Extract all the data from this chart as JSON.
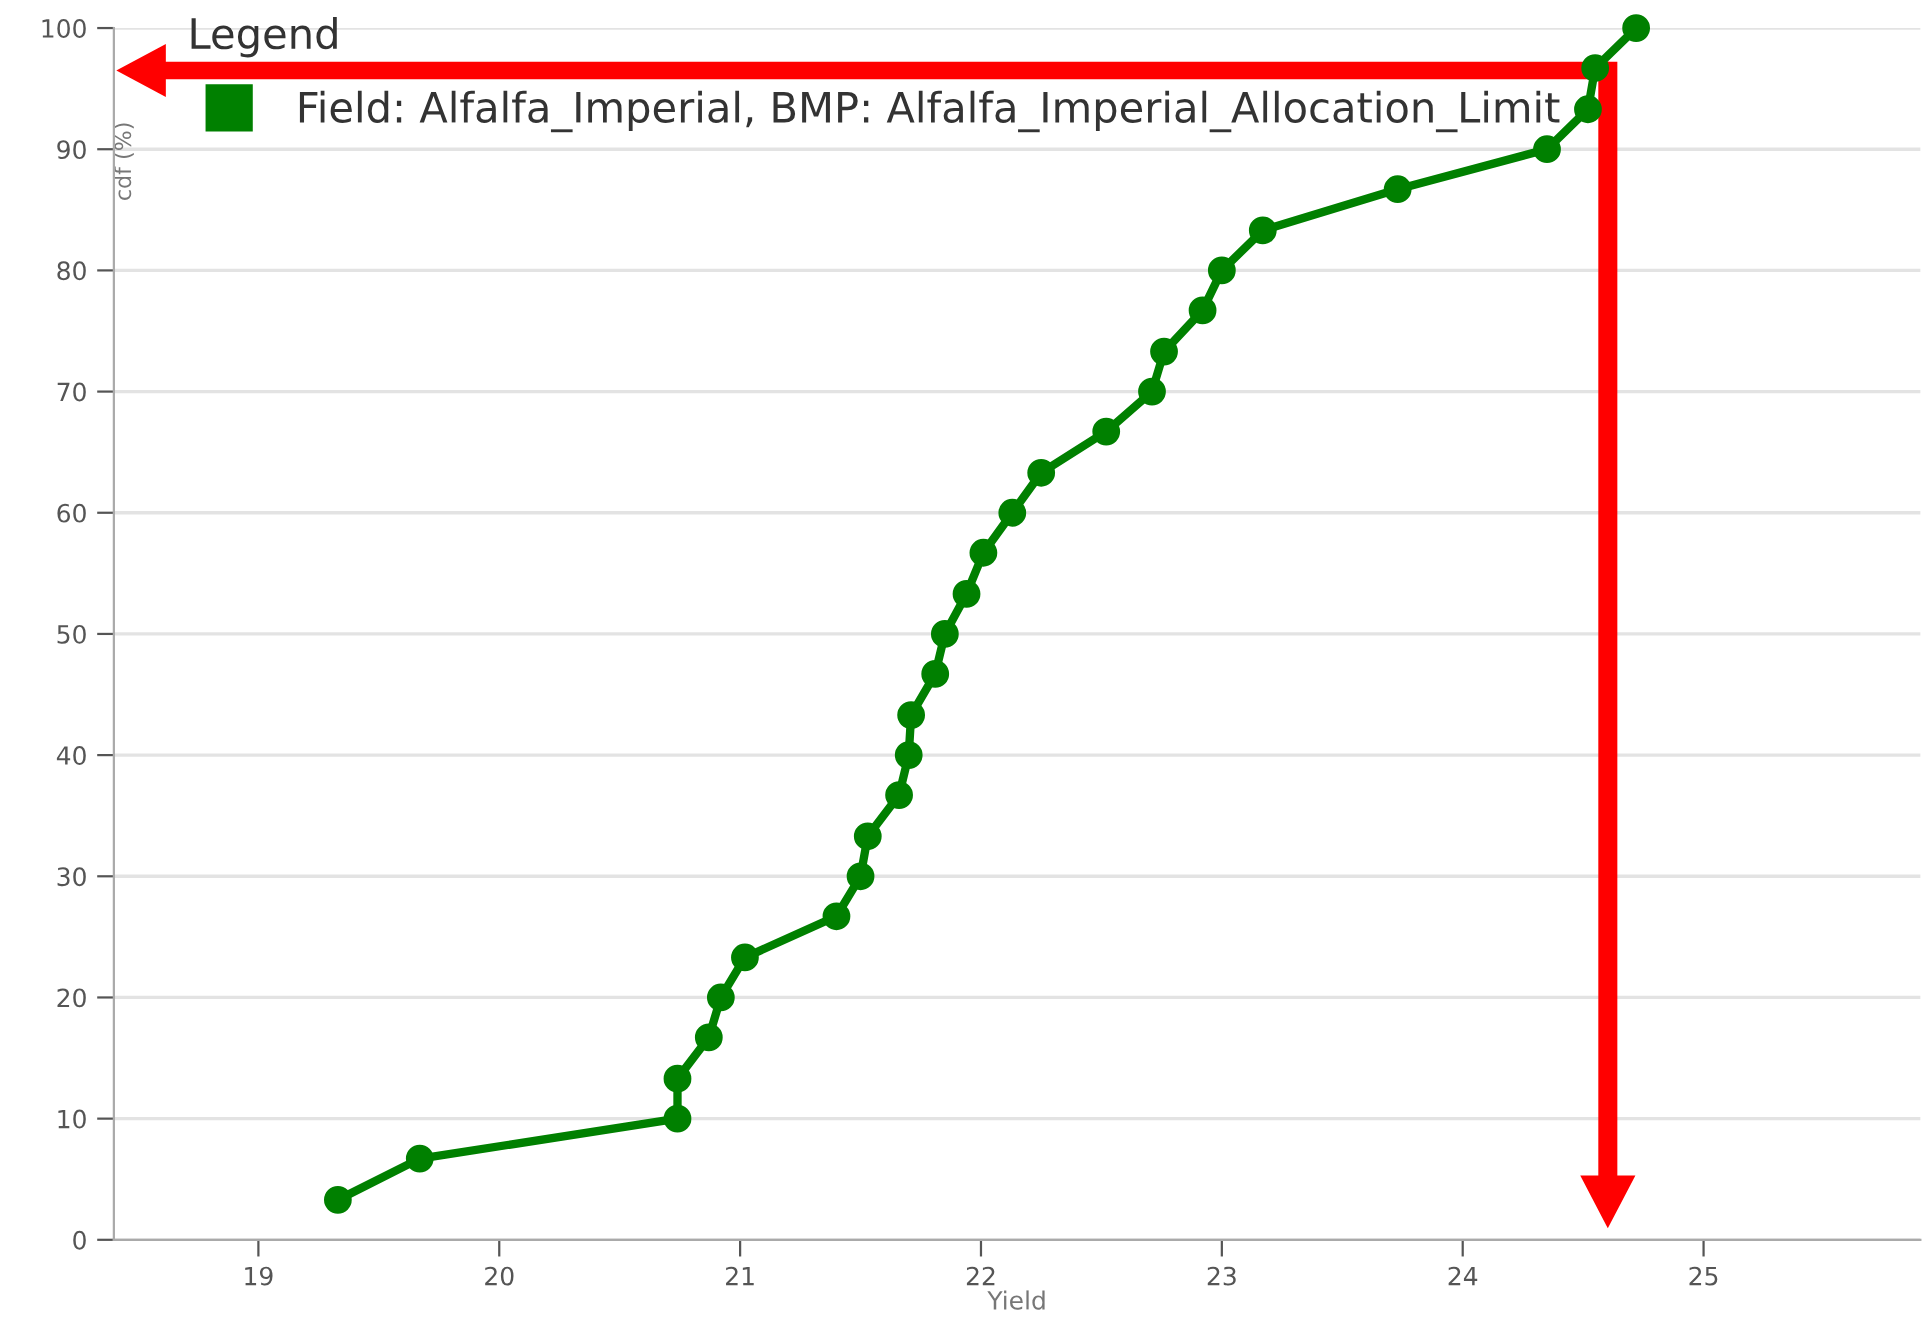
{
  "chart_data": {
    "type": "line",
    "xlabel": "Yield",
    "ylabel": "cdf (%)",
    "legend_title": "Legend",
    "series": [
      {
        "name": "Field: Alfalfa_Imperial, BMP: Alfalfa_Imperial_Allocation_Limit",
        "color": "#008000",
        "x": [
          19.33,
          19.67,
          20.74,
          20.74,
          20.87,
          20.92,
          21.02,
          21.4,
          21.5,
          21.53,
          21.66,
          21.7,
          21.71,
          21.81,
          21.85,
          21.94,
          22.01,
          22.13,
          22.25,
          22.52,
          22.71,
          22.76,
          22.92,
          23.0,
          23.17,
          23.73,
          24.35,
          24.52,
          24.55,
          24.72
        ],
        "values": [
          3.3,
          6.7,
          10.0,
          13.3,
          16.7,
          20.0,
          23.3,
          26.7,
          30.0,
          33.3,
          36.7,
          40.0,
          43.3,
          46.7,
          50.0,
          53.3,
          56.7,
          60.0,
          63.3,
          66.7,
          70.0,
          73.3,
          76.7,
          80.0,
          83.3,
          86.7,
          90.0,
          93.3,
          96.7,
          100.0
        ]
      }
    ],
    "xlim": [
      18.4,
      25.9
    ],
    "xticks": [
      19,
      20,
      21,
      22,
      23,
      24,
      25
    ],
    "ylim": [
      0,
      100
    ],
    "yticks": [
      0,
      10,
      20,
      30,
      40,
      50,
      60,
      70,
      80,
      90,
      100
    ],
    "grid": "y",
    "legend": "top left",
    "marker": "circle",
    "line_style": "solid"
  }
}
